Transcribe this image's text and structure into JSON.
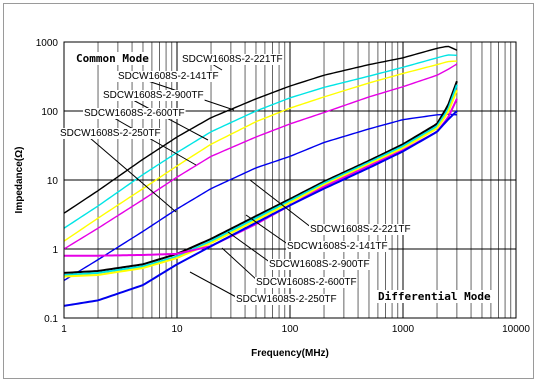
{
  "chart_data": {
    "type": "line",
    "xlabel": "Frequency(MHz)",
    "ylabel": "Impedance(Ω)",
    "xscale": "log",
    "yscale": "log",
    "xlim": [
      1,
      10000
    ],
    "ylim": [
      0.1,
      1000
    ],
    "x_ticks": [
      "1",
      "10",
      "100",
      "1000",
      "10000"
    ],
    "y_ticks": [
      "1000",
      "100",
      "10",
      "1",
      "0.1"
    ],
    "grid": true,
    "annotations": [
      "Common Mode",
      "Differential Mode"
    ],
    "series": [
      {
        "name": "SDCW1608S-2-221TF",
        "mode": "common",
        "color": "#000000",
        "x": [
          1,
          2,
          5,
          10,
          20,
          50,
          100,
          200,
          500,
          1000,
          2000,
          2500,
          3000
        ],
        "y": [
          3.3,
          7,
          20,
          42,
          80,
          150,
          230,
          330,
          470,
          590,
          810,
          870,
          760
        ]
      },
      {
        "name": "SDCW1608S-2-141TF",
        "mode": "common",
        "color": "#00e5e5",
        "x": [
          1,
          2,
          5,
          10,
          20,
          50,
          100,
          200,
          500,
          1000,
          2000,
          2500,
          3000
        ],
        "y": [
          2,
          4.2,
          12,
          25,
          50,
          100,
          155,
          220,
          320,
          430,
          590,
          650,
          640
        ]
      },
      {
        "name": "SDCW1608S-2-900TF",
        "mode": "common",
        "color": "#ffff00",
        "x": [
          1,
          2,
          5,
          10,
          20,
          50,
          100,
          200,
          500,
          1000,
          2000,
          2500,
          3000
        ],
        "y": [
          1.3,
          2.8,
          7.5,
          16,
          33,
          70,
          110,
          160,
          255,
          350,
          470,
          520,
          530
        ]
      },
      {
        "name": "SDCW1608S-2-600TF",
        "mode": "common",
        "color": "#e600e6",
        "x": [
          1,
          2,
          5,
          10,
          20,
          50,
          100,
          200,
          500,
          1000,
          2000,
          2500,
          3000
        ],
        "y": [
          1,
          2,
          5.2,
          11,
          22,
          42,
          65,
          95,
          160,
          225,
          330,
          400,
          480
        ]
      },
      {
        "name": "SDCW1608S-2-250TF",
        "mode": "common",
        "color": "#0000ee",
        "x": [
          1,
          2,
          5,
          10,
          20,
          50,
          100,
          200,
          500,
          1000,
          2000,
          2500,
          3000
        ],
        "y": [
          0.35,
          0.7,
          1.8,
          3.8,
          7.5,
          15,
          22,
          35,
          55,
          75,
          88,
          90,
          88
        ]
      },
      {
        "name": "SDCW1608S-2-221TF",
        "mode": "differential",
        "color": "#000000",
        "x": [
          1,
          2,
          5,
          10,
          20,
          50,
          100,
          200,
          500,
          1000,
          2000,
          2500,
          3000
        ],
        "y": [
          0.45,
          0.48,
          0.6,
          0.85,
          1.4,
          3,
          5.3,
          9.5,
          19,
          33,
          65,
          120,
          270
        ]
      },
      {
        "name": "SDCW1608S-2-141TF",
        "mode": "differential",
        "color": "#00e5e5",
        "x": [
          1,
          2,
          5,
          10,
          20,
          50,
          100,
          200,
          500,
          1000,
          2000,
          2500,
          3000
        ],
        "y": [
          0.42,
          0.45,
          0.56,
          0.78,
          1.3,
          2.8,
          5,
          9,
          18,
          31,
          60,
          105,
          240
        ]
      },
      {
        "name": "SDCW1608S-2-900TF",
        "mode": "differential",
        "color": "#ffff00",
        "x": [
          1,
          2,
          5,
          10,
          20,
          50,
          100,
          200,
          500,
          1000,
          2000,
          2500,
          3000
        ],
        "y": [
          0.4,
          0.42,
          0.53,
          0.74,
          1.22,
          2.6,
          4.7,
          8.5,
          17,
          29,
          56,
          95,
          200
        ]
      },
      {
        "name": "SDCW1608S-2-600TF",
        "mode": "differential",
        "color": "#e600e6",
        "x": [
          1,
          2,
          5,
          10,
          20,
          50,
          100,
          200,
          500,
          1000,
          2000,
          2500,
          3000
        ],
        "y": [
          0.8,
          0.8,
          0.82,
          0.85,
          1.1,
          2.3,
          4.3,
          8,
          16,
          27,
          50,
          80,
          150
        ]
      },
      {
        "name": "SDCW1608S-2-250TF",
        "mode": "differential",
        "color": "#0000ee",
        "x": [
          1,
          2,
          5,
          10,
          20,
          50,
          100,
          200,
          500,
          1000,
          2000,
          2500,
          3000
        ],
        "y": [
          0.15,
          0.18,
          0.3,
          0.6,
          1.1,
          2.4,
          4.3,
          7.5,
          15,
          26,
          50,
          75,
          100
        ]
      }
    ]
  }
}
